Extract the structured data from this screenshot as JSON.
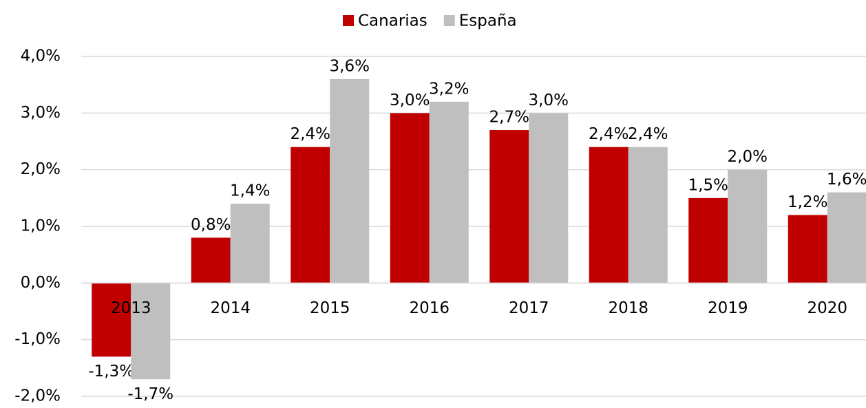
{
  "chart_data": {
    "type": "bar",
    "categories": [
      "2013",
      "2014",
      "2015",
      "2016",
      "2017",
      "2018",
      "2019",
      "2020"
    ],
    "series": [
      {
        "name": "Canarias",
        "color": "#c00000",
        "values": [
          -1.3,
          0.8,
          2.4,
          3.0,
          2.7,
          2.4,
          1.5,
          1.2
        ],
        "value_labels": [
          "-1,3%",
          "0,8%",
          "2,4%",
          "3,0%",
          "2,7%",
          "2,4%",
          "1,5%",
          "1,2%"
        ]
      },
      {
        "name": "España",
        "color": "#bfbfbf",
        "values": [
          -1.7,
          1.4,
          3.6,
          3.2,
          3.0,
          2.4,
          2.0,
          1.6
        ],
        "value_labels": [
          "-1,7%",
          "1,4%",
          "3,6%",
          "3,2%",
          "3,0%",
          "2,4%",
          "2,0%",
          "1,6%"
        ]
      }
    ],
    "ylim": [
      -2,
      4
    ],
    "yticks": [
      {
        "value": -2,
        "label": "-2,0%"
      },
      {
        "value": -1,
        "label": "-1,0%"
      },
      {
        "value": 0,
        "label": "0,0%"
      },
      {
        "value": 1,
        "label": "1,0%"
      },
      {
        "value": 2,
        "label": "2,0%"
      },
      {
        "value": 3,
        "label": "3,0%"
      },
      {
        "value": 4,
        "label": "4,0%"
      }
    ],
    "grid": true,
    "legend": "top"
  }
}
